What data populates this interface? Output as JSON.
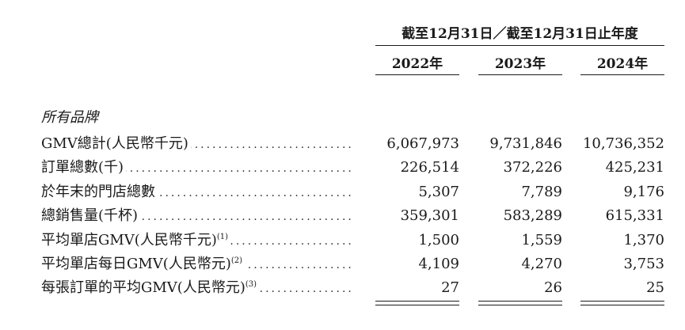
{
  "header": {
    "period": "截至12月31日／截至12月31日止年度",
    "years": [
      "2022年",
      "2023年",
      "2024年"
    ]
  },
  "section_title": "所有品牌",
  "rows": [
    {
      "label": "GMV總計(人民幣千元)",
      "note": "",
      "values": [
        "6,067,973",
        "9,731,846",
        "10,736,352"
      ]
    },
    {
      "label": "訂單總數(千)",
      "note": "",
      "values": [
        "226,514",
        "372,226",
        "425,231"
      ]
    },
    {
      "label": "於年末的門店總數",
      "note": "",
      "values": [
        "5,307",
        "7,789",
        "9,176"
      ]
    },
    {
      "label": "總銷售量(千杯)",
      "note": "",
      "values": [
        "359,301",
        "583,289",
        "615,331"
      ]
    },
    {
      "label": "平均單店GMV(人民幣千元)",
      "note": "(1)",
      "values": [
        "1,500",
        "1,559",
        "1,370"
      ]
    },
    {
      "label": "平均單店每日GMV(人民幣元)",
      "note": "(2)",
      "values": [
        "4,109",
        "4,270",
        "3,753"
      ]
    },
    {
      "label": "每張訂單的平均GMV(人民幣元)",
      "note": "(3)",
      "values": [
        "27",
        "26",
        "25"
      ]
    }
  ]
}
